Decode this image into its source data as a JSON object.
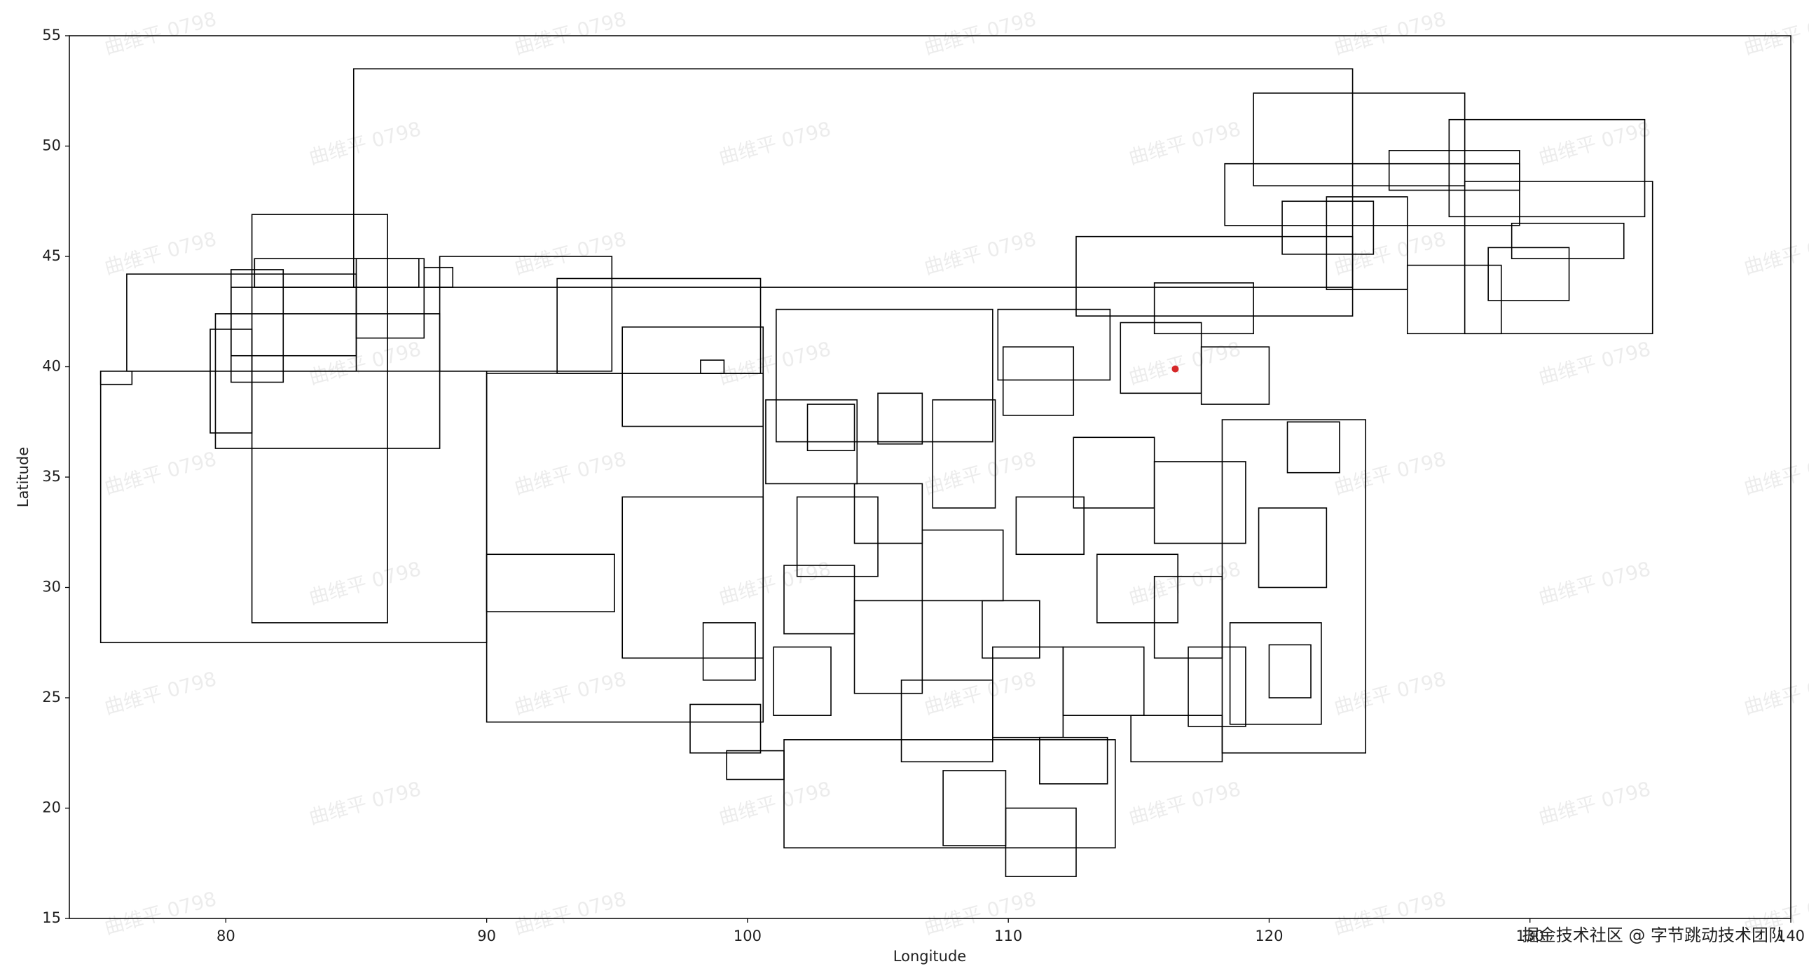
{
  "chart_data": {
    "type": "rect",
    "xlabel": "Longitude",
    "ylabel": "Latitude",
    "xlim": [
      74,
      140
    ],
    "ylim": [
      15,
      55
    ],
    "xticks": [
      80,
      90,
      100,
      110,
      120,
      130,
      140
    ],
    "yticks": [
      15,
      20,
      25,
      30,
      35,
      40,
      45,
      50,
      55
    ],
    "edge_color": "#000000",
    "watermark": "曲维平 0798",
    "credit": "掘金技术社区 @ 字节跳动技术团队",
    "point": {
      "x": 116.4,
      "y": 39.9,
      "color": "#d62728"
    },
    "rects": [
      {
        "x": [
          84.9,
          123.2
        ],
        "y": [
          43.6,
          53.5
        ]
      },
      {
        "x": [
          76.2,
          85.0
        ],
        "y": [
          39.8,
          44.2
        ]
      },
      {
        "x": [
          75.2,
          90.0
        ],
        "y": [
          27.5,
          39.8
        ]
      },
      {
        "x": [
          81.0,
          86.2
        ],
        "y": [
          28.4,
          46.9
        ]
      },
      {
        "x": [
          79.6,
          88.2
        ],
        "y": [
          36.3,
          42.4
        ]
      },
      {
        "x": [
          79.4,
          81.0
        ],
        "y": [
          37.0,
          41.7
        ]
      },
      {
        "x": [
          80.2,
          82.2
        ],
        "y": [
          39.3,
          44.4
        ]
      },
      {
        "x": [
          81.1,
          87.4
        ],
        "y": [
          43.6,
          44.9
        ]
      },
      {
        "x": [
          80.2,
          85.0
        ],
        "y": [
          40.5,
          43.6
        ]
      },
      {
        "x": [
          85.0,
          87.6
        ],
        "y": [
          41.3,
          44.9
        ]
      },
      {
        "x": [
          87.6,
          88.7
        ],
        "y": [
          43.6,
          44.5
        ]
      },
      {
        "x": [
          88.2,
          94.8
        ],
        "y": [
          39.8,
          45.0
        ]
      },
      {
        "x": [
          92.7,
          100.5
        ],
        "y": [
          39.7,
          44.0
        ]
      },
      {
        "x": [
          90.0,
          100.6
        ],
        "y": [
          23.9,
          39.7
        ]
      },
      {
        "x": [
          95.2,
          100.6
        ],
        "y": [
          37.3,
          41.8
        ]
      },
      {
        "x": [
          95.2,
          100.6
        ],
        "y": [
          26.8,
          34.1
        ]
      },
      {
        "x": [
          90.0,
          94.9
        ],
        "y": [
          28.9,
          31.5
        ]
      },
      {
        "x": [
          75.2,
          76.4
        ],
        "y": [
          39.2,
          39.8
        ]
      },
      {
        "x": [
          98.2,
          99.1
        ],
        "y": [
          39.7,
          40.3
        ]
      },
      {
        "x": [
          101.1,
          109.4
        ],
        "y": [
          36.6,
          42.6
        ]
      },
      {
        "x": [
          100.7,
          104.2
        ],
        "y": [
          34.7,
          38.5
        ]
      },
      {
        "x": [
          101.4,
          114.1
        ],
        "y": [
          18.2,
          23.1
        ]
      },
      {
        "x": [
          109.9,
          112.6
        ],
        "y": [
          16.9,
          20.0
        ]
      },
      {
        "x": [
          107.5,
          109.9
        ],
        "y": [
          18.3,
          21.7
        ]
      },
      {
        "x": [
          112.6,
          123.2
        ],
        "y": [
          42.3,
          45.9
        ]
      },
      {
        "x": [
          118.2,
          123.7
        ],
        "y": [
          22.5,
          37.6
        ]
      },
      {
        "x": [
          118.5,
          122.0
        ],
        "y": [
          23.8,
          28.4
        ]
      },
      {
        "x": [
          119.4,
          127.5
        ],
        "y": [
          48.2,
          52.4
        ]
      },
      {
        "x": [
          126.9,
          134.4
        ],
        "y": [
          46.8,
          51.2
        ]
      },
      {
        "x": [
          118.3,
          129.6
        ],
        "y": [
          46.4,
          49.2
        ]
      },
      {
        "x": [
          127.5,
          134.7
        ],
        "y": [
          41.5,
          48.4
        ]
      },
      {
        "x": [
          124.6,
          129.6
        ],
        "y": [
          48.0,
          49.8
        ]
      },
      {
        "x": [
          120.5,
          124.0
        ],
        "y": [
          45.1,
          47.5
        ]
      },
      {
        "x": [
          115.6,
          119.4
        ],
        "y": [
          41.5,
          43.8
        ]
      },
      {
        "x": [
          129.3,
          133.6
        ],
        "y": [
          44.9,
          46.5
        ]
      },
      {
        "x": [
          109.6,
          113.9
        ],
        "y": [
          39.4,
          42.6
        ]
      },
      {
        "x": [
          107.1,
          109.5
        ],
        "y": [
          33.6,
          38.5
        ]
      },
      {
        "x": [
          101.9,
          105.0
        ],
        "y": [
          30.5,
          34.1
        ]
      },
      {
        "x": [
          98.3,
          100.3
        ],
        "y": [
          25.8,
          28.4
        ]
      },
      {
        "x": [
          97.8,
          100.5
        ],
        "y": [
          22.5,
          24.7
        ]
      },
      {
        "x": [
          99.2,
          101.4
        ],
        "y": [
          21.3,
          22.6
        ]
      },
      {
        "x": [
          114.3,
          117.4
        ],
        "y": [
          38.8,
          42.0
        ]
      },
      {
        "x": [
          115.6,
          119.1
        ],
        "y": [
          32.0,
          35.7
        ]
      },
      {
        "x": [
          119.6,
          122.2
        ],
        "y": [
          30.0,
          33.6
        ]
      },
      {
        "x": [
          112.1,
          115.2
        ],
        "y": [
          24.2,
          27.3
        ]
      },
      {
        "x": [
          105.9,
          109.4
        ],
        "y": [
          22.1,
          25.8
        ]
      },
      {
        "x": [
          104.1,
          106.7
        ],
        "y": [
          25.2,
          29.4
        ]
      },
      {
        "x": [
          110.3,
          112.9
        ],
        "y": [
          31.5,
          34.1
        ]
      },
      {
        "x": [
          116.9,
          119.1
        ],
        "y": [
          23.7,
          27.3
        ]
      },
      {
        "x": [
          102.3,
          104.1
        ],
        "y": [
          36.2,
          38.3
        ]
      },
      {
        "x": [
          105.0,
          106.7
        ],
        "y": [
          36.5,
          38.8
        ]
      },
      {
        "x": [
          109.8,
          112.5
        ],
        "y": [
          37.8,
          40.9
        ]
      },
      {
        "x": [
          112.5,
          115.6
        ],
        "y": [
          33.6,
          36.8
        ]
      },
      {
        "x": [
          106.7,
          109.8
        ],
        "y": [
          29.4,
          32.6
        ]
      },
      {
        "x": [
          113.4,
          116.5
        ],
        "y": [
          28.4,
          31.5
        ]
      },
      {
        "x": [
          109.4,
          112.1
        ],
        "y": [
          23.2,
          27.3
        ]
      },
      {
        "x": [
          101.0,
          103.2
        ],
        "y": [
          24.2,
          27.3
        ]
      },
      {
        "x": [
          122.2,
          125.3
        ],
        "y": [
          43.5,
          47.7
        ]
      },
      {
        "x": [
          125.3,
          128.9
        ],
        "y": [
          41.5,
          44.6
        ]
      },
      {
        "x": [
          128.4,
          131.5
        ],
        "y": [
          43.0,
          45.4
        ]
      },
      {
        "x": [
          117.4,
          120.0
        ],
        "y": [
          38.3,
          40.9
        ]
      },
      {
        "x": [
          114.7,
          118.2
        ],
        "y": [
          22.1,
          24.2
        ]
      },
      {
        "x": [
          115.6,
          118.2
        ],
        "y": [
          26.8,
          30.5
        ]
      },
      {
        "x": [
          111.2,
          113.8
        ],
        "y": [
          21.1,
          23.2
        ]
      },
      {
        "x": [
          101.4,
          104.1
        ],
        "y": [
          27.9,
          31.0
        ]
      },
      {
        "x": [
          104.1,
          106.7
        ],
        "y": [
          32.0,
          34.7
        ]
      },
      {
        "x": [
          109.0,
          111.2
        ],
        "y": [
          26.8,
          29.4
        ]
      },
      {
        "x": [
          120.0,
          121.6
        ],
        "y": [
          25.0,
          27.4
        ]
      },
      {
        "x": [
          120.7,
          122.7
        ],
        "y": [
          35.2,
          37.5
        ]
      }
    ]
  }
}
